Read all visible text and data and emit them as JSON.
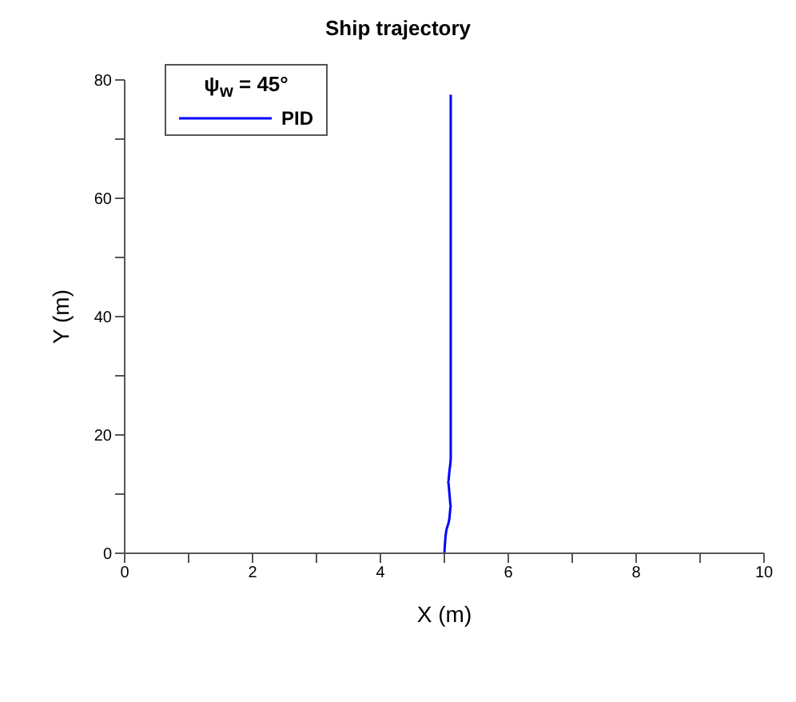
{
  "chart_data": {
    "type": "line",
    "title": "Ship trajectory",
    "xlabel": "X (m)",
    "ylabel": "Y (m)",
    "legend_title": "ψ$_{w}$ = 45°",
    "legend": "top left",
    "grid": false,
    "marker": "none",
    "line_style": "solid",
    "xlim": [
      0,
      10
    ],
    "xticks": [
      0,
      {
        "value": 1,
        "label": null
      },
      2,
      {
        "value": 3,
        "label": null
      },
      4,
      {
        "value": 5,
        "label": null
      },
      6,
      {
        "value": 7,
        "label": null
      },
      8,
      {
        "value": 9,
        "label": null
      },
      10
    ],
    "ylim": [
      0,
      80
    ],
    "yticks": [
      0,
      {
        "value": 10,
        "label": null
      },
      20,
      {
        "value": 30,
        "label": null
      },
      40,
      {
        "value": 50,
        "label": null
      },
      60,
      {
        "value": 70,
        "label": null
      },
      80
    ],
    "series": [
      {
        "name": "PID",
        "color": "#0000ff",
        "x": [
          5.0,
          5.02,
          5.08,
          5.1,
          5.08,
          5.06,
          5.08,
          5.1,
          5.1,
          5.1,
          5.1,
          5.1,
          5.1,
          5.1,
          5.1
        ],
        "values": [
          0,
          3,
          6,
          8,
          10,
          12,
          14,
          16,
          20,
          30,
          40,
          50,
          60,
          70,
          77.5
        ]
      }
    ]
  }
}
